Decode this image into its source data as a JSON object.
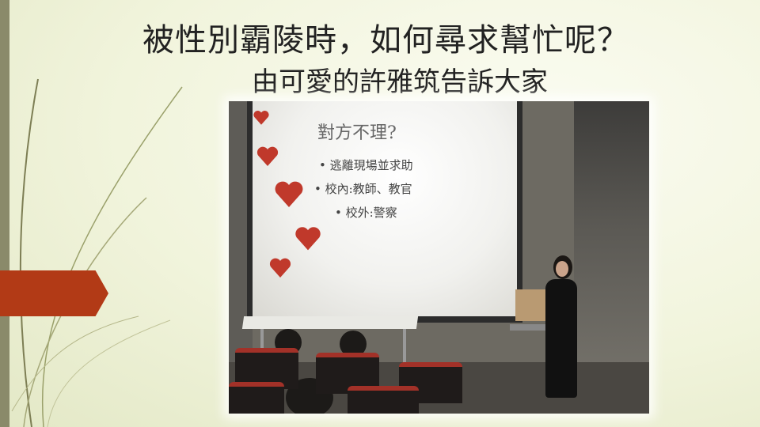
{
  "slide": {
    "title": "被性別霸陵時，如何尋求幫忙呢？",
    "subtitle": "由可愛的許雅筑告訴大家"
  },
  "photo": {
    "projected_slide": {
      "title": "對方不理?",
      "items": [
        "• 逃離現場並求助",
        "• 校內:教師、教官",
        "• 校外:警察"
      ]
    }
  },
  "colors": {
    "accent": "#b23a16",
    "background": "#f1f4dc",
    "left_bar": "#8a8a6a"
  }
}
